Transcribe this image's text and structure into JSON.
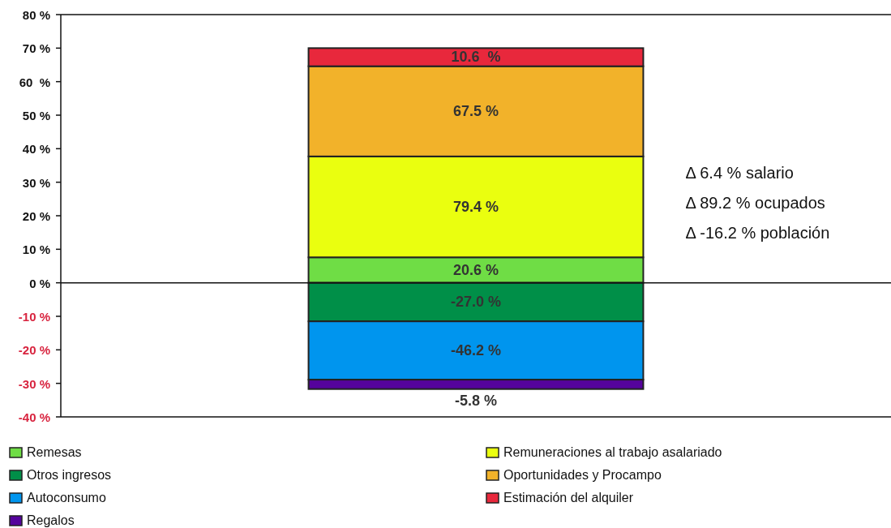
{
  "chart_data": {
    "type": "bar",
    "stacked": true,
    "categories": [
      null
    ],
    "ylim": [
      -40,
      80
    ],
    "yticks": [
      {
        "value": 80,
        "label": "80 %"
      },
      {
        "value": 70,
        "label": "70 %"
      },
      {
        "value": 60,
        "label": "60  %"
      },
      {
        "value": 50,
        "label": "50 %"
      },
      {
        "value": 40,
        "label": "40 %"
      },
      {
        "value": 30,
        "label": "30 %"
      },
      {
        "value": 20,
        "label": "20 %"
      },
      {
        "value": 10,
        "label": "10 %"
      },
      {
        "value": 0,
        "label": "0 %"
      },
      {
        "value": -10,
        "label": "-10 %"
      },
      {
        "value": -20,
        "label": "-20 %"
      },
      {
        "value": -30,
        "label": "-30 %"
      },
      {
        "value": -40,
        "label": "-40 %"
      }
    ],
    "series": [
      {
        "name": "Remesas",
        "color": "#6fdd45",
        "values": [
          7.6
        ]
      },
      {
        "name": "Otros ingresos",
        "color": "#008f48",
        "values": [
          -11.5
        ]
      },
      {
        "name": "Autoconsumo",
        "color": "#0095ee",
        "values": [
          -17.4
        ]
      },
      {
        "name": "Regalos",
        "color": "#55039c",
        "values": [
          -2.8
        ]
      },
      {
        "name": "Remuneraciones al trabajo asalariado",
        "color": "#eaff0f",
        "values": [
          30.1
        ]
      },
      {
        "name": "Oportunidades y Procampo",
        "color": "#f2b22a",
        "values": [
          26.9
        ]
      },
      {
        "name": "Estimación del alquiler",
        "color": "#e8283c",
        "values": [
          5.4
        ]
      }
    ],
    "annotations": [
      "20.6 %",
      "-27.0 %",
      "-46.2 %",
      "-5.8 %",
      "79.4 %",
      "67.5 %",
      "10.6  %",
      "Δ 6.4 % salario",
      "Δ 89.2 % ocupados",
      "Δ -16.2 % población"
    ],
    "legend": "bottom"
  }
}
